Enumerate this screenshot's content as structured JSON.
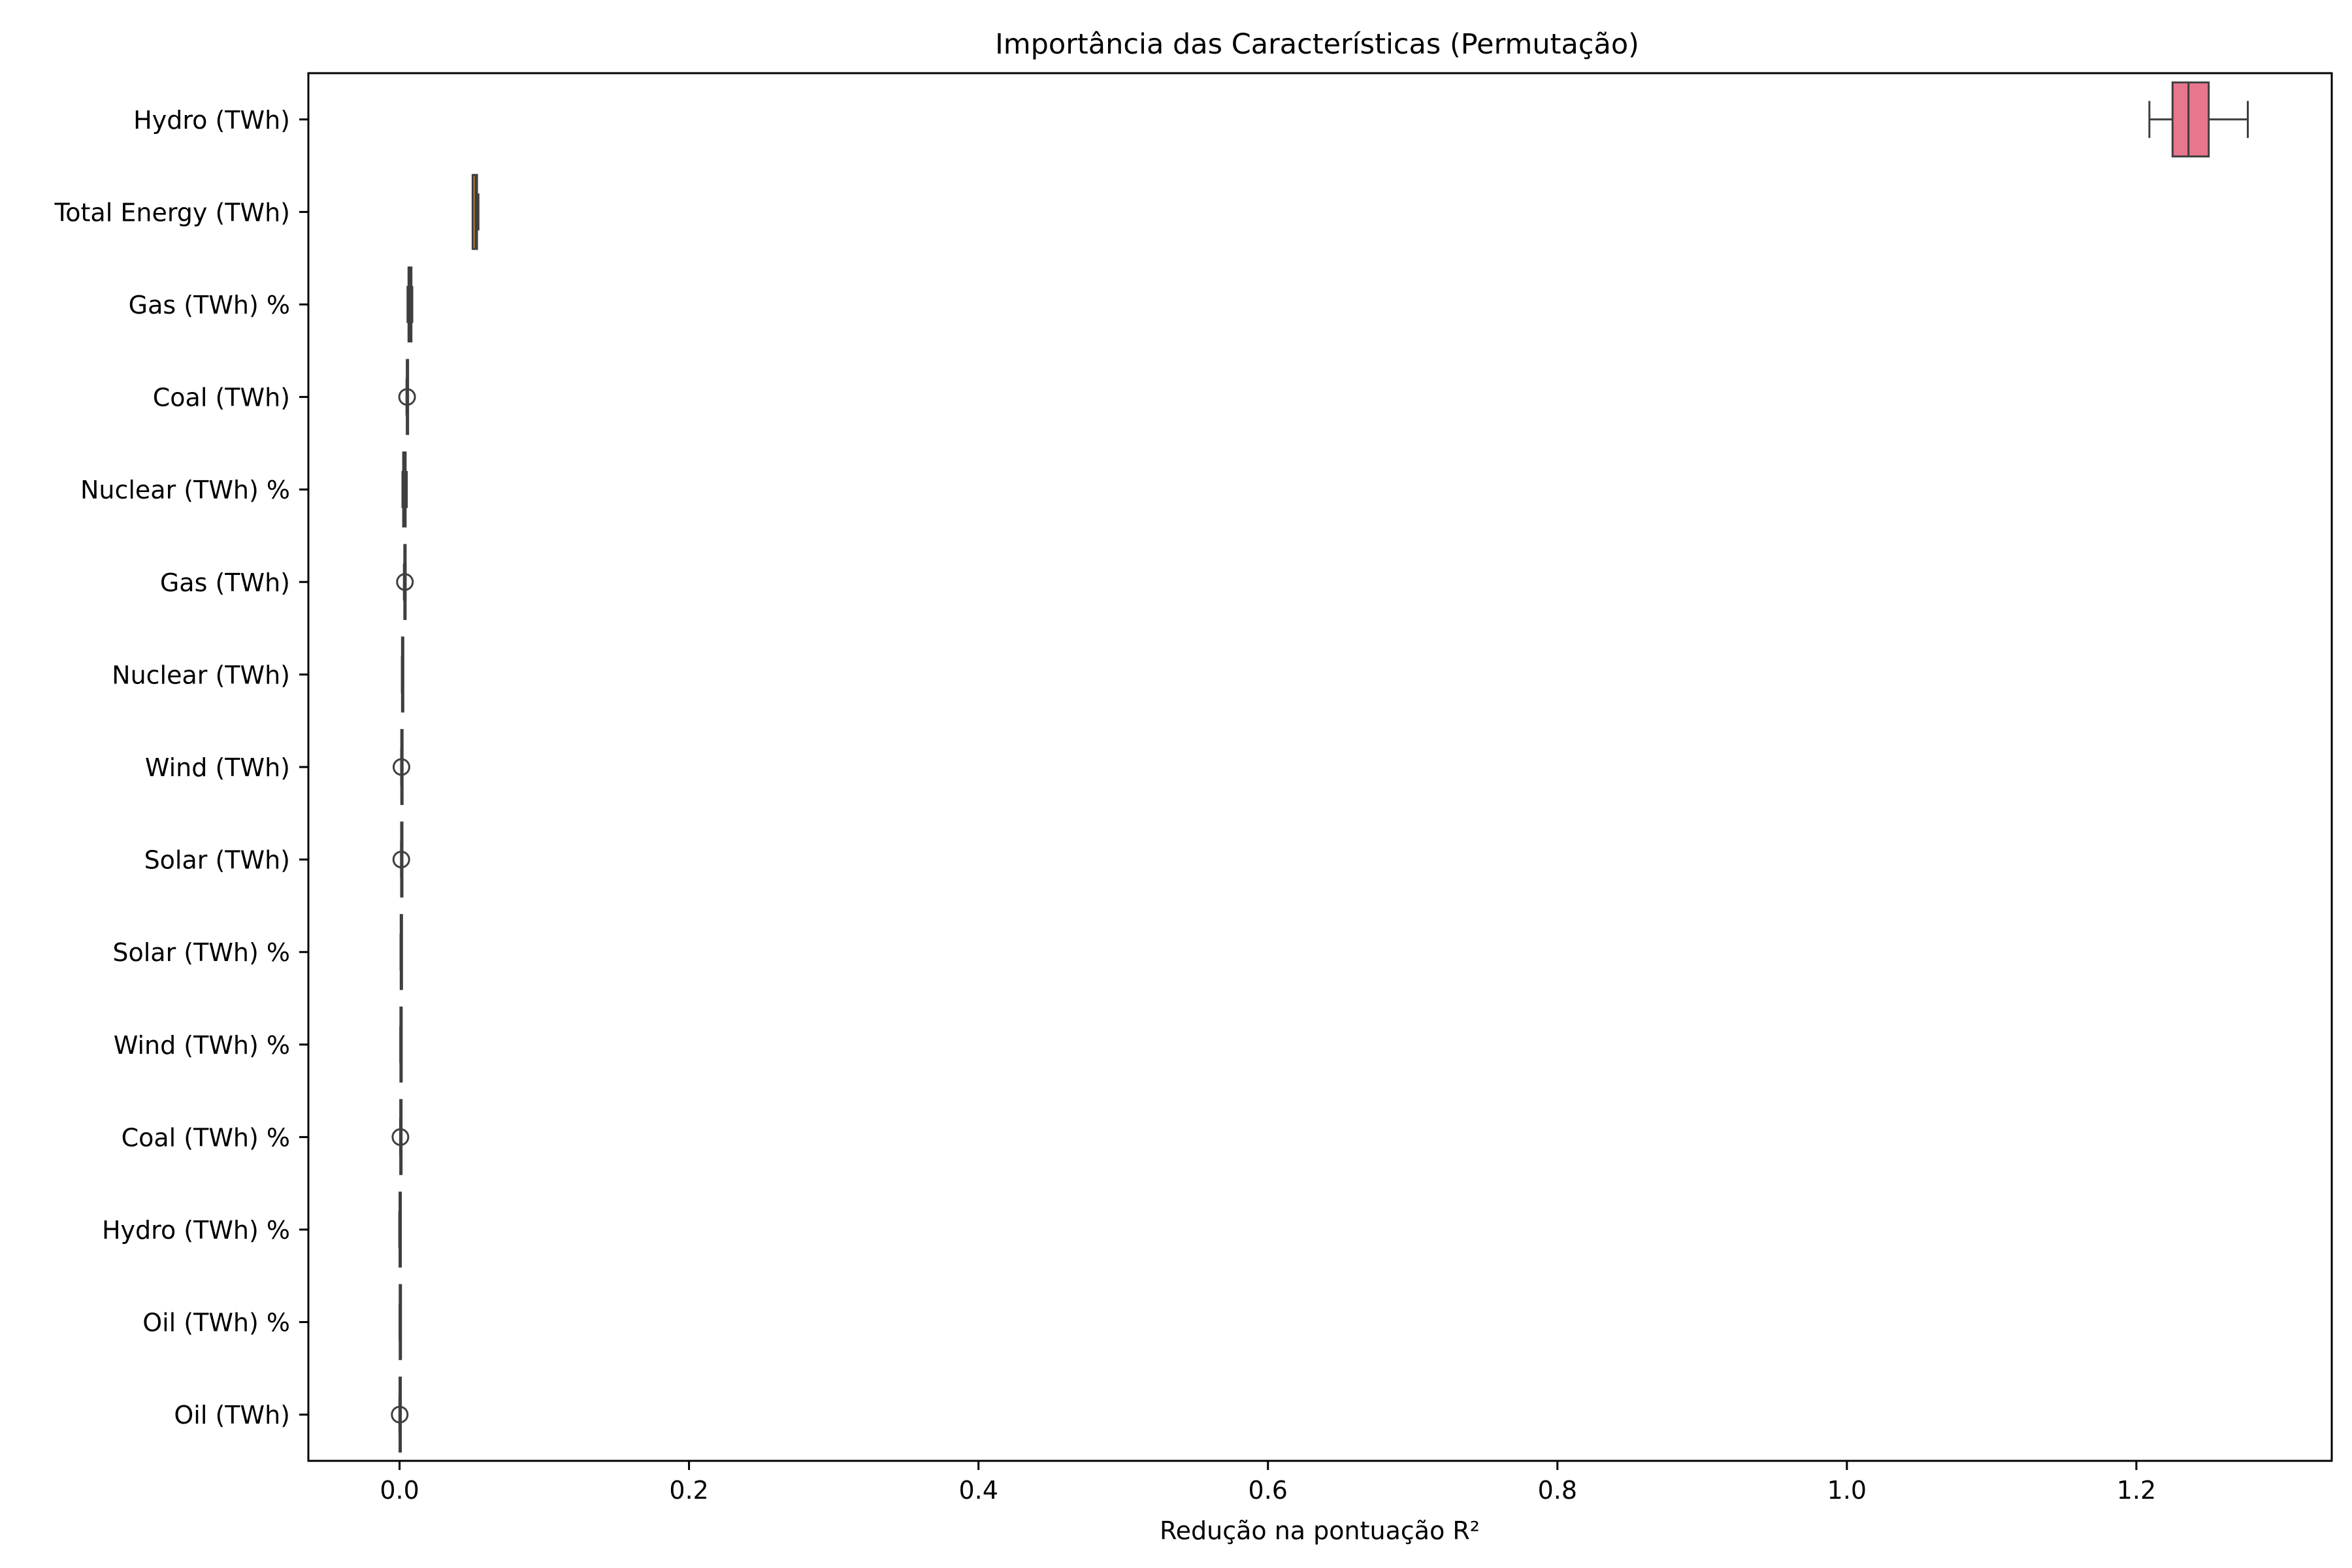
{
  "chart_data": {
    "type": "boxplot",
    "orientation": "horizontal",
    "title": "Importância das Características (Permutação)",
    "xlabel": "Redução na pontuação R²",
    "ylabel": "",
    "xlim": [
      -0.063,
      1.335
    ],
    "xticks": [
      {
        "value": 0.0,
        "label": "0.0"
      },
      {
        "value": 0.2,
        "label": "0.2"
      },
      {
        "value": 0.4,
        "label": "0.4"
      },
      {
        "value": 0.6,
        "label": "0.6"
      },
      {
        "value": 0.8,
        "label": "0.8"
      },
      {
        "value": 1.0,
        "label": "1.0"
      },
      {
        "value": 1.2,
        "label": "1.2"
      }
    ],
    "grid": false,
    "legend": "none",
    "categories": [
      {
        "label": "Hydro (TWh)",
        "color": "#e8768c",
        "whislo": 1.209,
        "q1": 1.225,
        "med": 1.236,
        "q3": 1.25,
        "whishi": 1.277,
        "fliers": []
      },
      {
        "label": "Total Energy (TWh)",
        "color": "#d98a3a",
        "whislo": 0.0505,
        "q1": 0.0505,
        "med": 0.0525,
        "q3": 0.0535,
        "whishi": 0.0545,
        "fliers": []
      },
      {
        "label": "Gas (TWh) %",
        "color": "#b09a3c",
        "whislo": 0.0055,
        "q1": 0.0062,
        "med": 0.0072,
        "q3": 0.0082,
        "whishi": 0.0088,
        "fliers": []
      },
      {
        "label": "Coal (TWh)",
        "color": "#8da43c",
        "whislo": 0.0048,
        "q1": 0.005,
        "med": 0.0052,
        "q3": 0.0054,
        "whishi": 0.0056,
        "fliers": [
          0.0052
        ]
      },
      {
        "label": "Nuclear (TWh) %",
        "color": "#4eb05a",
        "whislo": 0.002,
        "q1": 0.0025,
        "med": 0.0032,
        "q3": 0.0042,
        "whishi": 0.005,
        "fliers": []
      },
      {
        "label": "Gas (TWh)",
        "color": "#3eae8a",
        "whislo": 0.003,
        "q1": 0.0033,
        "med": 0.0036,
        "q3": 0.0039,
        "whishi": 0.0042,
        "fliers": [
          0.0037
        ]
      },
      {
        "label": "Nuclear (TWh)",
        "color": "#3eaaa4",
        "whislo": 0.0016,
        "q1": 0.0017,
        "med": 0.0018,
        "q3": 0.0019,
        "whishi": 0.002,
        "fliers": []
      },
      {
        "label": "Wind (TWh)",
        "color": "#41a6c0",
        "whislo": 0.0011,
        "q1": 0.0012,
        "med": 0.0013,
        "q3": 0.0014,
        "whishi": 0.0015,
        "fliers": [
          0.0013
        ]
      },
      {
        "label": "Solar (TWh)",
        "color": "#5b9de0",
        "whislo": 0.001,
        "q1": 0.0011,
        "med": 0.0012,
        "q3": 0.0013,
        "whishi": 0.0014,
        "fliers": [
          0.0012
        ]
      },
      {
        "label": "Solar (TWh) %",
        "color": "#9b8ee8",
        "whislo": 0.0007,
        "q1": 0.0008,
        "med": 0.0009,
        "q3": 0.001,
        "whishi": 0.0011,
        "fliers": []
      },
      {
        "label": "Wind (TWh) %",
        "color": "#cc7de6",
        "whislo": 0.0005,
        "q1": 0.0006,
        "med": 0.0007,
        "q3": 0.0008,
        "whishi": 0.0009,
        "fliers": []
      },
      {
        "label": "Coal (TWh) %",
        "color": "#e072cf",
        "whislo": 0.0004,
        "q1": 0.0005,
        "med": 0.0006,
        "q3": 0.0007,
        "whishi": 0.0008,
        "fliers": [
          0.0006
        ]
      },
      {
        "label": "Hydro (TWh) %",
        "color": "#e873ab",
        "whislo": -0.0002,
        "q1": 0.0,
        "med": 0.0002,
        "q3": 0.0004,
        "whishi": 0.0006,
        "fliers": []
      },
      {
        "label": "Oil (TWh) %",
        "color": "#e9788c",
        "whislo": 0.0,
        "q1": 0.0001,
        "med": 0.0002,
        "q3": 0.0003,
        "whishi": 0.0004,
        "fliers": []
      },
      {
        "label": "Oil (TWh)",
        "color": "#ea7f7a",
        "whislo": -0.0001,
        "q1": 0.0,
        "med": 0.0001,
        "q3": 0.0002,
        "whishi": 0.0003,
        "fliers": [
          0.0001
        ]
      }
    ]
  }
}
